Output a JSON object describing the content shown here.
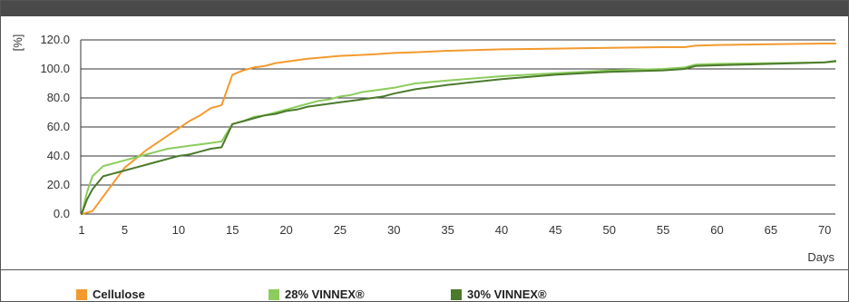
{
  "header": {
    "title": ""
  },
  "colors": {
    "cellulose": "#f39a2e",
    "vinnex28": "#8ccc5c",
    "vinnex30": "#4b7a2c"
  },
  "chart_data": {
    "type": "line",
    "title": "",
    "xlabel": "Days",
    "ylabel": "[%]",
    "xlim": [
      1,
      72
    ],
    "ylim": [
      0,
      120
    ],
    "x_ticks": [
      "1",
      "5",
      "10",
      "15",
      "20",
      "25",
      "30",
      "35",
      "40",
      "45",
      "50",
      "55",
      "60",
      "65",
      "70"
    ],
    "y_ticks": [
      "0.0",
      "20.0",
      "40.0",
      "60.0",
      "80.0",
      "100.0",
      "120.0"
    ],
    "grid": "horizontal",
    "legend": "bottom",
    "series": [
      {
        "name": "Cellulose",
        "color": "#f39a2e",
        "x": [
          1,
          2,
          3,
          4,
          5,
          6,
          7,
          8,
          9,
          10,
          11,
          12,
          13,
          14,
          15,
          16,
          17,
          18,
          19,
          20,
          21,
          22,
          25,
          28,
          30,
          32,
          35,
          40,
          45,
          50,
          55,
          57,
          58,
          60,
          65,
          70,
          71
        ],
        "y": [
          0,
          2,
          12,
          22,
          32,
          38,
          44,
          49,
          54,
          59,
          64,
          68,
          73,
          75,
          96,
          99,
          101,
          102,
          104,
          105,
          106,
          107,
          109,
          110,
          111,
          111.5,
          112.5,
          113.5,
          114,
          114.5,
          115,
          115,
          116,
          116.5,
          117,
          117.5,
          117.5
        ]
      },
      {
        "name": "28% VINNEX®",
        "color": "#8ccc5c",
        "x": [
          1,
          1.5,
          2,
          3,
          4,
          5,
          6,
          7,
          8,
          9,
          10,
          11,
          12,
          13,
          14,
          15,
          16,
          17,
          18,
          19,
          20,
          21,
          22,
          23,
          24,
          25,
          26,
          27,
          28,
          30,
          32,
          35,
          40,
          45,
          50,
          55,
          57,
          58,
          60,
          65,
          70,
          71
        ],
        "y": [
          0,
          15,
          26,
          33,
          35,
          37,
          39,
          41,
          43,
          45,
          46,
          47,
          48,
          49,
          50,
          62,
          64,
          67,
          68,
          70,
          72,
          74,
          76,
          78,
          79,
          81,
          82,
          84,
          85,
          87,
          90,
          92,
          95,
          97,
          99,
          100,
          101,
          103,
          103.5,
          104,
          104.5,
          105
        ]
      },
      {
        "name": "30% VINNEX®",
        "color": "#4b7a2c",
        "x": [
          1,
          1.5,
          2,
          3,
          4,
          5,
          6,
          7,
          8,
          9,
          10,
          11,
          12,
          13,
          14,
          15,
          16,
          17,
          18,
          19,
          20,
          21,
          22,
          23,
          24,
          25,
          26,
          27,
          28,
          29,
          30,
          32,
          35,
          40,
          45,
          50,
          55,
          57,
          58,
          60,
          65,
          70,
          71
        ],
        "y": [
          0,
          10,
          17,
          26,
          28,
          30,
          32,
          34,
          36,
          38,
          40,
          41,
          43,
          45,
          46,
          62,
          64,
          66,
          68,
          69,
          71,
          72,
          74,
          75,
          76,
          77,
          78,
          79,
          80,
          81,
          83,
          86,
          89,
          93,
          96,
          98,
          99,
          100,
          102,
          102.5,
          103.5,
          104.5,
          105.5
        ]
      }
    ]
  }
}
